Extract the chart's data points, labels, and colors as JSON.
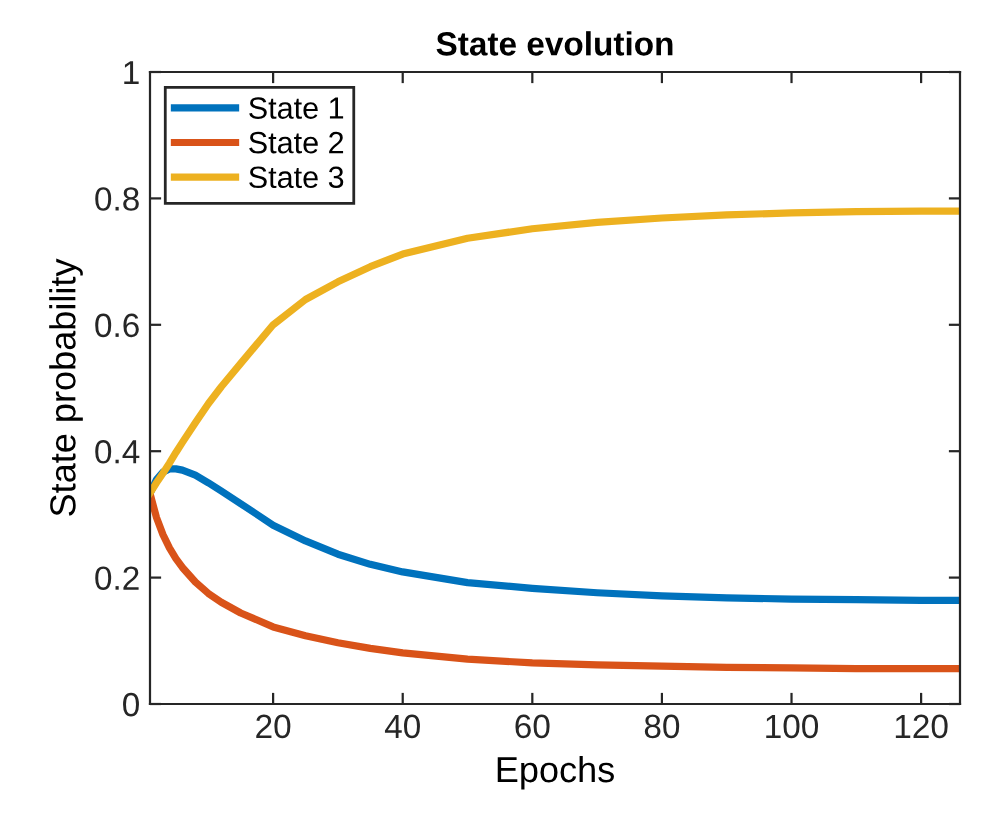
{
  "chart_data": {
    "type": "line",
    "title": "State evolution",
    "xlabel": "Epochs",
    "ylabel": "State probability",
    "x": [
      1,
      2,
      3,
      4,
      5,
      6,
      8,
      10,
      12,
      15,
      20,
      25,
      30,
      35,
      40,
      50,
      60,
      70,
      80,
      90,
      100,
      110,
      120,
      126
    ],
    "series": [
      {
        "name": "State 1",
        "color": "#0072bd",
        "values": [
          0.333,
          0.355,
          0.367,
          0.372,
          0.372,
          0.37,
          0.362,
          0.35,
          0.337,
          0.317,
          0.283,
          0.258,
          0.237,
          0.221,
          0.209,
          0.192,
          0.183,
          0.176,
          0.171,
          0.168,
          0.166,
          0.165,
          0.164,
          0.164
        ]
      },
      {
        "name": "State 2",
        "color": "#d95319",
        "values": [
          0.333,
          0.295,
          0.268,
          0.247,
          0.23,
          0.216,
          0.193,
          0.175,
          0.161,
          0.144,
          0.122,
          0.108,
          0.097,
          0.088,
          0.081,
          0.071,
          0.065,
          0.062,
          0.06,
          0.058,
          0.057,
          0.056,
          0.056,
          0.056
        ]
      },
      {
        "name": "State 3",
        "color": "#edb120",
        "values": [
          0.334,
          0.35,
          0.365,
          0.381,
          0.398,
          0.414,
          0.445,
          0.475,
          0.502,
          0.539,
          0.6,
          0.64,
          0.668,
          0.692,
          0.712,
          0.737,
          0.752,
          0.762,
          0.769,
          0.774,
          0.777,
          0.779,
          0.78,
          0.78
        ]
      }
    ],
    "xlim": [
      1,
      126
    ],
    "ylim": [
      0,
      1
    ],
    "xticks": [
      20,
      40,
      60,
      80,
      100,
      120
    ],
    "yticks": [
      0,
      0.2,
      0.4,
      0.6,
      0.8,
      1
    ],
    "grid": false,
    "legend": "top left",
    "marker": "none",
    "line_style": "solid"
  }
}
